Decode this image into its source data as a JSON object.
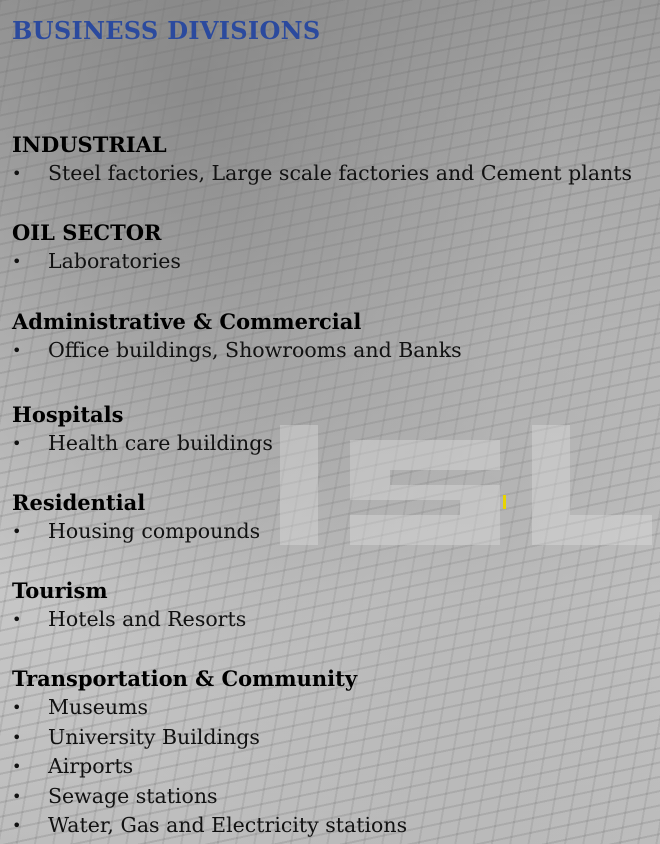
{
  "title": "BUSINESS DIVISIONS",
  "sections": [
    {
      "heading": "INDUSTRIAL",
      "items": [
        "Steel factories, Large scale factories and Cement plants"
      ]
    },
    {
      "heading": "OIL SECTOR",
      "items": [
        "Laboratories"
      ]
    },
    {
      "heading": "Administrative & Commercial",
      "items": [
        "Office buildings, Showrooms and Banks"
      ]
    },
    {
      "heading": "Hospitals",
      "items": [
        "Health care buildings"
      ]
    },
    {
      "heading": "Residential",
      "items": [
        "Housing compounds"
      ]
    },
    {
      "heading": "Tourism",
      "items": [
        "Hotels and Resorts"
      ]
    },
    {
      "heading": "Transportation & Community",
      "items": [
        "Museums",
        "University Buildings",
        "Airports",
        "Sewage stations",
        "Water, Gas and Electricity stations"
      ]
    }
  ],
  "bullet_glyph": "•",
  "colors": {
    "title": "#2b4a9e",
    "text": "#000000"
  }
}
